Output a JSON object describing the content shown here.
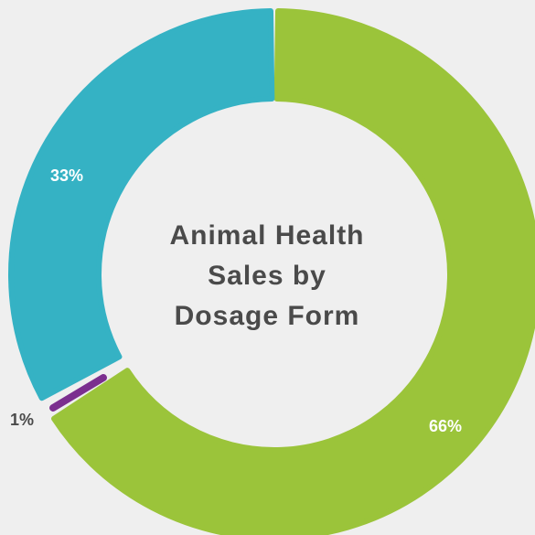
{
  "chart_data": {
    "type": "pie",
    "title": [
      "Animal Health",
      "Sales by",
      "Dosage Form"
    ],
    "slices": [
      {
        "value": 66,
        "label": "66%",
        "color": "#9bc43a",
        "label_color": "#ffffff"
      },
      {
        "value": 1,
        "label": "1%",
        "color": "#7b2f8f",
        "label_color": "#4a4a4a"
      },
      {
        "value": 33,
        "label": "33%",
        "color": "#35b2c4",
        "label_color": "#ffffff"
      }
    ]
  }
}
